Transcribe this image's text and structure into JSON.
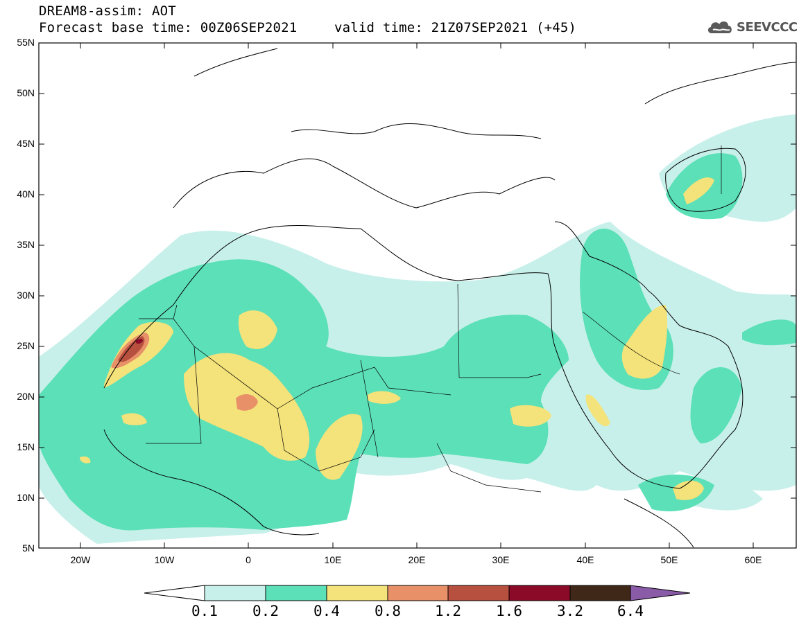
{
  "header": {
    "line1": "DREAM8-assim: AOT",
    "base_time": "Forecast base time: 00Z06SEP2021",
    "valid_time": "valid time: 21Z07SEP2021 (+45)"
  },
  "logo": {
    "text": "SEEVCCC",
    "icon": "cloud-icon"
  },
  "map": {
    "lat_labels": [
      "55N",
      "50N",
      "45N",
      "40N",
      "35N",
      "30N",
      "25N",
      "20N",
      "15N",
      "10N",
      "5N"
    ],
    "lon_labels": [
      "20W",
      "10W",
      "0",
      "10E",
      "20E",
      "30E",
      "40E",
      "50E",
      "60E"
    ],
    "extent": {
      "lon_min": -25,
      "lon_max": 65,
      "lat_min": 5,
      "lat_max": 55
    }
  },
  "colorbar": {
    "labels": [
      "0.1",
      "0.2",
      "0.4",
      "0.8",
      "1.2",
      "1.6",
      "3.2",
      "6.4"
    ],
    "colors": [
      "#c8f0ea",
      "#5ce0b8",
      "#f4e27a",
      "#e89068",
      "#b85040",
      "#8a0a28",
      "#402818"
    ],
    "under_color": "#ffffff",
    "over_color": "#8a5ca8"
  }
}
